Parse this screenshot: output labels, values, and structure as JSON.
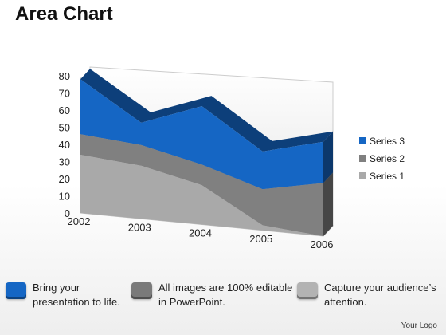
{
  "title": "Area Chart",
  "chart_data": {
    "type": "area",
    "view": "3d",
    "categories": [
      "2002",
      "2003",
      "2004",
      "2005",
      "2006"
    ],
    "series": [
      {
        "name": "Series 1",
        "values": [
          34,
          31,
          23,
          3,
          0
        ],
        "color": "#a9a9a9"
      },
      {
        "name": "Series 2",
        "values": [
          12,
          12,
          12,
          21,
          31
        ],
        "color": "#808080"
      },
      {
        "name": "Series 3",
        "values": [
          32,
          13,
          34,
          22,
          24
        ],
        "color": "#1566c4"
      }
    ],
    "yticks": [
      "80",
      "70",
      "60",
      "50",
      "40",
      "30",
      "20",
      "10",
      "0"
    ],
    "ylim": [
      0,
      80
    ],
    "stacked": true,
    "grid": false,
    "legend_position": "right"
  },
  "footer": {
    "items": [
      {
        "lines": [
          "Bring your",
          "presentation to life."
        ],
        "icon_color": "#1566c4",
        "icon": "blue-square-icon"
      },
      {
        "lines": [
          "All images are 100% editable",
          "in PowerPoint."
        ],
        "icon_color": "#7a7a7a",
        "icon": "gray-square-icon"
      },
      {
        "lines": [
          "Capture your audience’s",
          "attention."
        ],
        "icon_color": "#b3b3b3",
        "icon": "light-gray-square-icon"
      }
    ]
  },
  "logo": "Your Logo"
}
